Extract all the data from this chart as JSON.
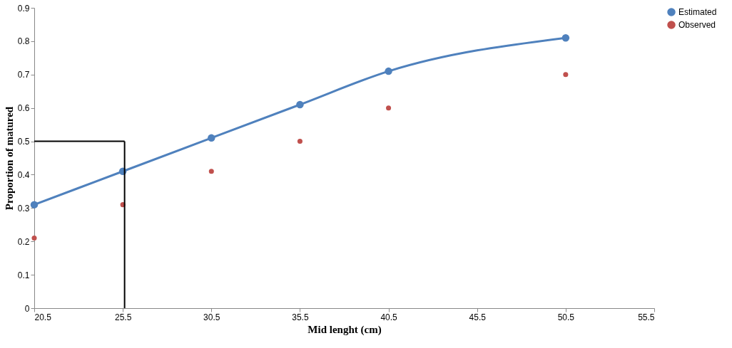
{
  "chart_data": {
    "type": "line",
    "xlabel": "Mid lenght (cm)",
    "ylabel": "Proportion of matured",
    "x": [
      20.5,
      25.5,
      30.5,
      35.5,
      40.5,
      50.5
    ],
    "series": [
      {
        "name": "Estimated",
        "color": "#4f81bd",
        "marker": "circle",
        "values": [
          0.31,
          0.41,
          0.51,
          0.61,
          0.71,
          0.81
        ]
      },
      {
        "name": "Observed",
        "type": "scatter",
        "color": "#c0504d",
        "marker": "circle",
        "values": [
          0.21,
          0.31,
          0.41,
          0.5,
          0.6,
          0.7
        ]
      }
    ],
    "ref_lines": [
      {
        "axis": "y",
        "value": 0.5,
        "color": "#000000"
      },
      {
        "axis": "x",
        "value": 25.6,
        "color": "#000000"
      }
    ],
    "xlim": [
      20.5,
      55.5
    ],
    "xticks": [
      20.5,
      25.5,
      30.5,
      35.5,
      40.5,
      45.5,
      50.5,
      55.5
    ],
    "ylim": [
      0,
      0.9
    ],
    "yticks": [
      0,
      0.1,
      0.2,
      0.3,
      0.4,
      0.5,
      0.6,
      0.7,
      0.8,
      0.9
    ],
    "grid": false,
    "legend": "right"
  }
}
